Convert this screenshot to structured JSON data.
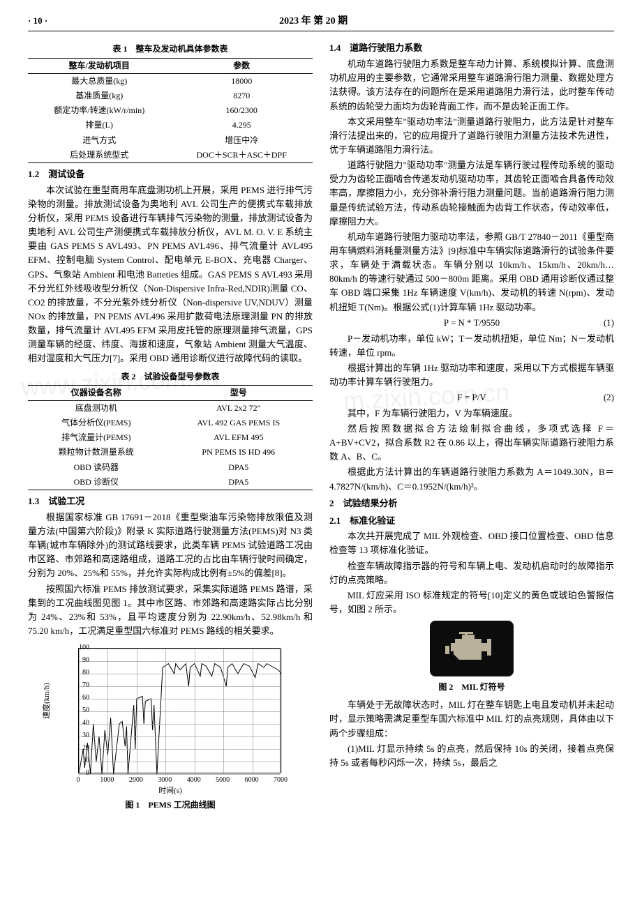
{
  "header": {
    "page_no": "· 10 ·",
    "issue": "2023 年 第 20 期"
  },
  "left": {
    "table1": {
      "caption": "表 1　整车及发动机具体参数表",
      "columns": [
        "整车/发动机项目",
        "参数"
      ],
      "rows": [
        [
          "最大总质量(kg)",
          "18000"
        ],
        [
          "基准质量(kg)",
          "8270"
        ],
        [
          "额定功率/转速(kW/r/min)",
          "160/2300"
        ],
        [
          "排量(L)",
          "4.295"
        ],
        [
          "进气方式",
          "增压中冷"
        ],
        [
          "后处理系统型式",
          "DOC＋SCR＋ASC＋DPF"
        ]
      ]
    },
    "sec12_head": "1.2　测试设备",
    "sec12_p1": "本次试验在重型商用车底盘测功机上开展，采用 PEMS 进行排气污染物的测量。排放测试设备为奥地利 AVL 公司生产的便携式车载排放分析仪，采用 PEMS 设备进行车辆排气污染物的测量，排放测试设备为奥地利 AVL 公司生产测便携式车载排放分析仪，AVL M. O. V. E 系统主要由 GAS PEMS S AVL493、PN PEMS AVL496、排气流量计 AVL495 EFM、控制电脑 System Control、配电单元 E-BOX、充电器 Charger、GPS、气象站 Ambient 和电池 Batteties 组成。GAS PEMS S AVL493 采用不分光红外线吸收型分析仪（Non-Dispersive Infra-Red,NDIR)测量 CO、CO2 的排放量，不分光紫外线分析仪（Non-dispersive UV,NDUV）测量 NOx 的排放量，PN PEMS AVL496 采用扩散荷电法原理测量 PN 的排放数量，排气流量计 AVL495 EFM 采用皮托管的原理测量排气流量，GPS 测量车辆的经度、纬度、海拔和速度，气象站 Ambient 测量大气温度、相对湿度和大气压力[7]。采用 OBD 通用诊断仪进行故障代码的读取。",
    "table2": {
      "caption": "表 2　试验设备型号参数表",
      "columns": [
        "仪器设备名称",
        "型号"
      ],
      "rows": [
        [
          "底盘测功机",
          "AVL 2x2 72\""
        ],
        [
          "气体分析仪(PEMS)",
          "AVL 492 GAS PEMS IS"
        ],
        [
          "排气流量计(PEMS)",
          "AVL EFM 495"
        ],
        [
          "颗粒物计数测量系统",
          "PN PEMS IS HD 496"
        ],
        [
          "OBD 读码器",
          "DPA5"
        ],
        [
          "OBD 诊断仪",
          "DPA5"
        ]
      ]
    },
    "sec13_head": "1.3　试验工况",
    "sec13_p1": "根据国家标准 GB 17691－2018《重型柴油车污染物排放限值及测量方法(中国第六阶段)》附录 K 实际道路行驶测量方法(PEMS)对 N3 类车辆(城市车辆除外)的测试路线要求，此类车辆 PEMS 试验道路工况由市区路、市郊路和高速路组成，道路工况的占比由车辆行驶时间确定，分别为 20%、25%和 55%，并允许实际构成比例有±5%的偏差[8]。",
    "sec13_p2": "按照国六标准 PEMS 排放测试要求，采集实际道路 PEMS 路谱，采集到的工况曲线图见图 1。其中市区路、市郊路和高速路实际占比分别为 24%、23%和 53%，且平均速度分别为 22.90km/h、52.98km/h 和 75.20 km/h，工况满足重型国六标准对 PEMS 路线的相关要求。",
    "fig1": {
      "caption": "图 1　PEMS 工况曲线图",
      "xlabel": "时间(s)",
      "ylabel": "速度(km/h)",
      "xlim": [
        0,
        7000
      ],
      "ylim": [
        0,
        100
      ],
      "xtick_step": 1000,
      "ytick_step": 10,
      "grid_color": "#bbbbbb",
      "line_color": "#000000",
      "background_color": "#ffffff",
      "series_xy": [
        [
          0,
          0
        ],
        [
          150,
          20
        ],
        [
          200,
          5
        ],
        [
          300,
          25
        ],
        [
          400,
          0
        ],
        [
          500,
          40
        ],
        [
          600,
          10
        ],
        [
          700,
          30
        ],
        [
          800,
          0
        ],
        [
          900,
          35
        ],
        [
          1000,
          15
        ],
        [
          1100,
          45
        ],
        [
          1200,
          0
        ],
        [
          1400,
          40
        ],
        [
          1500,
          42
        ],
        [
          1600,
          22
        ],
        [
          1650,
          38
        ],
        [
          1700,
          0
        ],
        [
          1900,
          55
        ],
        [
          1950,
          20
        ],
        [
          2000,
          60
        ],
        [
          2200,
          62
        ],
        [
          2250,
          40
        ],
        [
          2300,
          58
        ],
        [
          2500,
          60
        ],
        [
          2550,
          35
        ],
        [
          2600,
          55
        ],
        [
          2700,
          0
        ],
        [
          2900,
          85
        ],
        [
          3100,
          88
        ],
        [
          3300,
          80
        ],
        [
          3350,
          88
        ],
        [
          3500,
          83
        ],
        [
          3700,
          88
        ],
        [
          3800,
          70
        ],
        [
          3850,
          85
        ],
        [
          4000,
          88
        ],
        [
          4200,
          78
        ],
        [
          4250,
          88
        ],
        [
          4400,
          86
        ],
        [
          4600,
          78
        ],
        [
          4700,
          88
        ],
        [
          4900,
          85
        ],
        [
          5100,
          70
        ],
        [
          5150,
          85
        ],
        [
          5300,
          88
        ],
        [
          5500,
          80
        ],
        [
          5700,
          88
        ],
        [
          5900,
          86
        ],
        [
          6100,
          77
        ],
        [
          6200,
          88
        ],
        [
          6400,
          85
        ],
        [
          6500,
          88
        ],
        [
          6900,
          83
        ],
        [
          7000,
          80
        ]
      ]
    }
  },
  "right": {
    "sec14_head": "1.4　道路行驶阻力系数",
    "sec14_p1": "机动车道路行驶阻力系数是整车动力计算、系统模拟计算、底盘测功机应用的主要参数，它通常采用整车道路滑行阻力测量、数据处理方法获得。该方法存在的问题所在是采用道路阻力滑行法，此时整车传动系统的齿轮受力面均为齿轮背面工作，而不是齿轮正面工作。",
    "sec14_p2": "本文采用整车\"驱动功率法\"测量道路行驶阻力，此方法是针对整车滑行法提出来的，它的应用提升了道路行驶阻力测量方法技术先进性，优于车辆道路阻力滑行法。",
    "sec14_p3": "道路行驶阻力\"驱动功率\"测量方法是车辆行驶过程传动系统的驱动受力为齿轮正面啮合传递发动机驱动功率，其齿轮正面啮合具备传动效率高，摩擦阻力小，充分弥补滑行阻力测量问题。当前道路滑行阻力测量是传统试验方法，传动系齿轮接触面为齿背工作状态，传动效率低，摩擦阻力大。",
    "sec14_p4": "机动车道路行驶阻力驱动功率法，参照 GB/T 27840－2011《重型商用车辆燃料消耗量测量方法》[9]标准中车辆实际道路滑行的试验条件要求，车辆处于满载状态。车辆分别以 10km/h、15km/h、20km/h…80km/h 的等速行驶通过 500－800m 距离。采用 OBD 通用诊断仪通过整车 OBD 端口采集 1Hz 车辆速度 V(km/h)、发动机的转速 N(rpm)、发动机扭矩 T(Nm)。根据公式(1)计算车辆 1Hz 驱动功率。",
    "eq1": {
      "text": "P = N * T/9550",
      "num": "(1)"
    },
    "sec14_p5": "P－发动机功率，单位 kW；T－发动机扭矩，单位 Nm；N－发动机转速，单位 rpm。",
    "sec14_p6": "根据计算出的车辆 1Hz 驱动功率和速度，采用以下方式根据车辆驱动功率计算车辆行驶阻力。",
    "eq2": {
      "text": "F = P/V",
      "num": "(2)"
    },
    "sec14_p7": "其中，F 为车辆行驶阻力，V 为车辆速度。",
    "sec14_p8": "然后按照数据拟合方法绘制拟合曲线，多项式选择 F＝A+BV+CV2，拟合系数 R2 在 0.86 以上，得出车辆实际道路行驶阻力系数 A、B、C。",
    "sec14_p9": "根据此方法计算出的车辆道路行驶阻力系数为 A＝1049.30N，B＝4.7827N/(km/h)、C＝0.1952N/(km/h)²。",
    "sec2_head": "2　试验结果分析",
    "sec21_head": "2.1　标准化验证",
    "sec21_p1": "本次共开展完成了 MIL 外观检查、OBD 接口位置检查、OBD 信息检查等 13 项标准化验证。",
    "sec21_p2": "检查车辆故障指示器的符号和车辆上电、发动机启动时的故障指示灯的点亮策略。",
    "sec21_p3": "MIL 灯应采用 ISO 标准规定的符号[10]定义的黄色或琥珀色警报信号，如图 2 所示。",
    "fig2": {
      "caption": "图 2　MIL 灯符号",
      "bg_color": "#0c0c0c",
      "icon_color": "#b9b19b"
    },
    "sec21_p4": "车辆处于无故障状态时，MIL 灯在整车钥匙上电且发动机并未起动时，显示策略需满足重型车国六标准中 MIL 灯的点亮规则，具体由以下两个步骤组成：",
    "sec21_p5": "(1)MIL 灯显示持续 5s 的点亮，然后保持 10s 的关闭，接着点亮保持 5s 或者每秒闪烁一次，持续 5s，最后之"
  },
  "watermarks": {
    "w1": "www.zixin.com.cn",
    "w2": "m.zixin.com.cn"
  }
}
